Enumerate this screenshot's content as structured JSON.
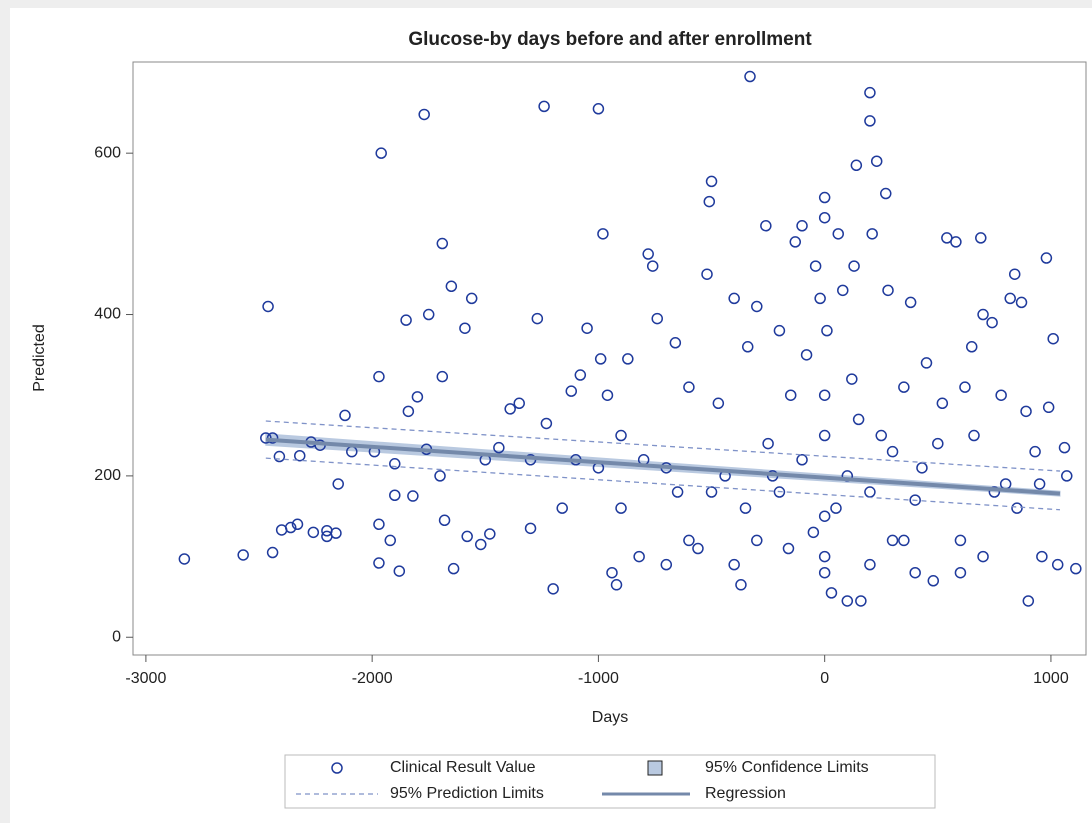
{
  "chart_data": {
    "type": "scatter",
    "title": "Glucose-by days before and after enrollment",
    "x_label": "Days",
    "y_label": "Predicted",
    "xlim": [
      -3057,
      1155
    ],
    "ylim": [
      -22,
      713
    ],
    "xticks": [
      -3000,
      -2000,
      -1000,
      0,
      1000
    ],
    "yticks": [
      0,
      200,
      400,
      600
    ],
    "grid": false,
    "legend": "bottom",
    "series": [
      {
        "name": "Clinical Result Value",
        "type": "scatter",
        "color": "#1f3a9c",
        "x": [
          -2830,
          -2570,
          -2460,
          -2470,
          -2440,
          -2440,
          -2410,
          -2400,
          -2360,
          -2330,
          -2320,
          -2270,
          -2260,
          -2230,
          -2200,
          -2200,
          -2160,
          -2150,
          -2120,
          -2090,
          -1990,
          -1970,
          -1960,
          -1970,
          -1970,
          -1920,
          -1900,
          -1880,
          -1850,
          -1840,
          -1820,
          -1800,
          -1770,
          -1760,
          -1750,
          -1690,
          -1690,
          -1680,
          -1650,
          -1640,
          -1590,
          -1580,
          -1560,
          -1520,
          -1480,
          -1440,
          -1390,
          -1350,
          -1300,
          -1270,
          -1240,
          -1230,
          -1200,
          -1160,
          -1120,
          -1080,
          -1050,
          -1000,
          -990,
          -980,
          -960,
          -940,
          -920,
          -900,
          -870,
          -820,
          -780,
          -760,
          -740,
          -700,
          -660,
          -600,
          -560,
          -520,
          -510,
          -500,
          -470,
          -440,
          -400,
          -370,
          -340,
          -330,
          -300,
          -260,
          -230,
          -200,
          -160,
          -130,
          -100,
          -80,
          -40,
          -20,
          0,
          0,
          0,
          0,
          0,
          0,
          0,
          10,
          30,
          60,
          80,
          100,
          130,
          140,
          160,
          200,
          200,
          210,
          230,
          270,
          280,
          300,
          350,
          380,
          430,
          480,
          520,
          540,
          580,
          620,
          660,
          690,
          700,
          740,
          780,
          820,
          840,
          870,
          890,
          900,
          930,
          960,
          980,
          990,
          1010,
          1030,
          1060,
          1070,
          1110,
          -600,
          -300,
          -500,
          -200,
          200,
          400,
          600,
          700,
          800,
          100,
          -100,
          300,
          500,
          -800,
          -1000,
          -700,
          -400,
          200,
          400,
          600,
          -1100,
          -1500,
          -1700,
          -1900,
          -1300,
          -900,
          -650,
          -250,
          150,
          250,
          450,
          650,
          750,
          850,
          950,
          -50,
          50,
          -150,
          120,
          -350,
          350
        ],
        "values": [
          97,
          102,
          410,
          247,
          247,
          105,
          224,
          133,
          136,
          140,
          225,
          242,
          130,
          238,
          132,
          125,
          129,
          190,
          275,
          230,
          230,
          323,
          600,
          92,
          140,
          120,
          176,
          82,
          393,
          280,
          175,
          298,
          648,
          233,
          400,
          488,
          323,
          145,
          435,
          85,
          383,
          125,
          420,
          115,
          128,
          235,
          283,
          290,
          135,
          395,
          658,
          265,
          60,
          160,
          305,
          325,
          383,
          655,
          345,
          500,
          300,
          80,
          65,
          160,
          345,
          100,
          475,
          460,
          395,
          210,
          365,
          310,
          110,
          450,
          540,
          565,
          290,
          200,
          420,
          65,
          360,
          695,
          410,
          510,
          200,
          380,
          110,
          490,
          510,
          350,
          460,
          420,
          545,
          520,
          300,
          250,
          150,
          100,
          80,
          380,
          55,
          500,
          430,
          45,
          460,
          585,
          45,
          675,
          640,
          500,
          590,
          550,
          430,
          120,
          310,
          415,
          210,
          70,
          290,
          495,
          490,
          310,
          250,
          495,
          400,
          390,
          300,
          420,
          450,
          415,
          280,
          45,
          230,
          100,
          470,
          285,
          370,
          90,
          235,
          200,
          85,
          120,
          120,
          180,
          180,
          180,
          170,
          120,
          100,
          190,
          200,
          220,
          230,
          240,
          220,
          210,
          90,
          90,
          90,
          80,
          80,
          220,
          220,
          200,
          215,
          220,
          250,
          180,
          240,
          270,
          250,
          340,
          360,
          180,
          160,
          190,
          130,
          160,
          300,
          320,
          160,
          120
        ]
      },
      {
        "name": "95% Confidence Limits",
        "type": "band",
        "color": "#b9c9e0",
        "x": [
          -2470,
          1040
        ],
        "lower": [
          238,
          175
        ],
        "upper": [
          252,
          181
        ]
      },
      {
        "name": "95% Prediction Limits",
        "type": "dashed",
        "color": "#7f92c8",
        "x": [
          -2470,
          1040
        ],
        "lower": [
          222,
          158
        ],
        "upper": [
          268,
          206
        ]
      },
      {
        "name": "Regression",
        "type": "line",
        "color": "#7489aa",
        "x": [
          -2470,
          1040
        ],
        "values": [
          245,
          178
        ]
      }
    ]
  }
}
